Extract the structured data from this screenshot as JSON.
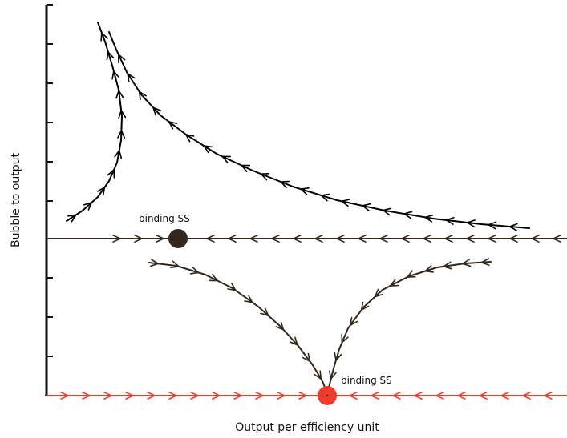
{
  "axes": {
    "xlabel": "Output per efficiency unit",
    "ylabel": "Bubble to output"
  },
  "points": {
    "upper": {
      "label": "binding SS",
      "color": "#33261a"
    },
    "lower": {
      "label": "binding SS",
      "color": "#f03a2c"
    }
  },
  "colors": {
    "axis": "#111111",
    "upper_trajectories": "#000000",
    "middle_line": "#33261a",
    "lower_trajectories": "#33261a",
    "bottom_line": "#f03a2c"
  }
}
